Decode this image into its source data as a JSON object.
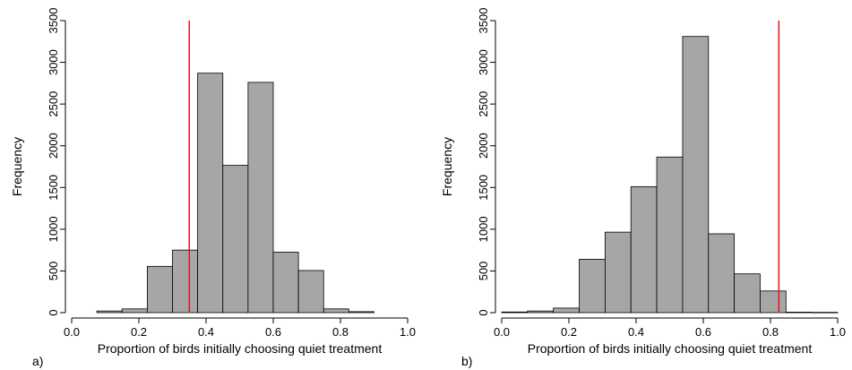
{
  "chart_data": [
    {
      "type": "bar",
      "panel_label": "a)",
      "xlabel": "Proportion of birds initially choosing quiet treatment",
      "ylabel": "Frequency",
      "xlim": [
        0.0,
        1.0
      ],
      "ylim": [
        0,
        3500
      ],
      "xticks": [
        0.0,
        0.2,
        0.4,
        0.6,
        0.8,
        1.0
      ],
      "xtick_labels": [
        "0.0",
        "0.2",
        "0.4",
        "0.6",
        "0.8",
        "1.0"
      ],
      "yticks": [
        0,
        500,
        1000,
        1500,
        2000,
        2500,
        3000,
        3500
      ],
      "ytick_labels": [
        "0",
        "500",
        "1000",
        "1500",
        "2000",
        "2500",
        "3000",
        "3500"
      ],
      "bins": [
        {
          "x0": 0.075,
          "x1": 0.15,
          "value": 20
        },
        {
          "x0": 0.15,
          "x1": 0.225,
          "value": 45
        },
        {
          "x0": 0.225,
          "x1": 0.3,
          "value": 555
        },
        {
          "x0": 0.3,
          "x1": 0.375,
          "value": 750
        },
        {
          "x0": 0.375,
          "x1": 0.45,
          "value": 2870
        },
        {
          "x0": 0.45,
          "x1": 0.525,
          "value": 1765
        },
        {
          "x0": 0.525,
          "x1": 0.6,
          "value": 2760
        },
        {
          "x0": 0.6,
          "x1": 0.675,
          "value": 725
        },
        {
          "x0": 0.675,
          "x1": 0.75,
          "value": 505
        },
        {
          "x0": 0.75,
          "x1": 0.825,
          "value": 45
        },
        {
          "x0": 0.825,
          "x1": 0.9,
          "value": 12
        }
      ],
      "reference_line": {
        "x": 0.35,
        "color": "#e8101a"
      },
      "bar_color": "#a6a6a6",
      "grid": false
    },
    {
      "type": "bar",
      "panel_label": "b)",
      "xlabel": "Proportion of birds initially choosing quiet treatment",
      "ylabel": "Frequency",
      "xlim": [
        0.0,
        1.0
      ],
      "ylim": [
        0,
        3500
      ],
      "xticks": [
        0.0,
        0.2,
        0.4,
        0.6,
        0.8,
        1.0
      ],
      "xtick_labels": [
        "0.0",
        "0.2",
        "0.4",
        "0.6",
        "0.8",
        "1.0"
      ],
      "yticks": [
        0,
        500,
        1000,
        1500,
        2000,
        2500,
        3000,
        3500
      ],
      "ytick_labels": [
        "0",
        "500",
        "1000",
        "1500",
        "2000",
        "2500",
        "3000",
        "3500"
      ],
      "bins": [
        {
          "x0": 0.0,
          "x1": 0.0769,
          "value": 8
        },
        {
          "x0": 0.0769,
          "x1": 0.1538,
          "value": 20
        },
        {
          "x0": 0.1538,
          "x1": 0.2308,
          "value": 55
        },
        {
          "x0": 0.2308,
          "x1": 0.3077,
          "value": 640
        },
        {
          "x0": 0.3077,
          "x1": 0.3846,
          "value": 965
        },
        {
          "x0": 0.3846,
          "x1": 0.4615,
          "value": 1510
        },
        {
          "x0": 0.4615,
          "x1": 0.5385,
          "value": 1865
        },
        {
          "x0": 0.5385,
          "x1": 0.6154,
          "value": 3310
        },
        {
          "x0": 0.6154,
          "x1": 0.6923,
          "value": 945
        },
        {
          "x0": 0.6923,
          "x1": 0.7692,
          "value": 465
        },
        {
          "x0": 0.7692,
          "x1": 0.8462,
          "value": 260
        },
        {
          "x0": 0.8462,
          "x1": 0.9231,
          "value": 6
        },
        {
          "x0": 0.9231,
          "x1": 1.0,
          "value": 4
        }
      ],
      "reference_line": {
        "x": 0.825,
        "color": "#e8101a"
      },
      "bar_color": "#a6a6a6",
      "grid": false
    }
  ]
}
